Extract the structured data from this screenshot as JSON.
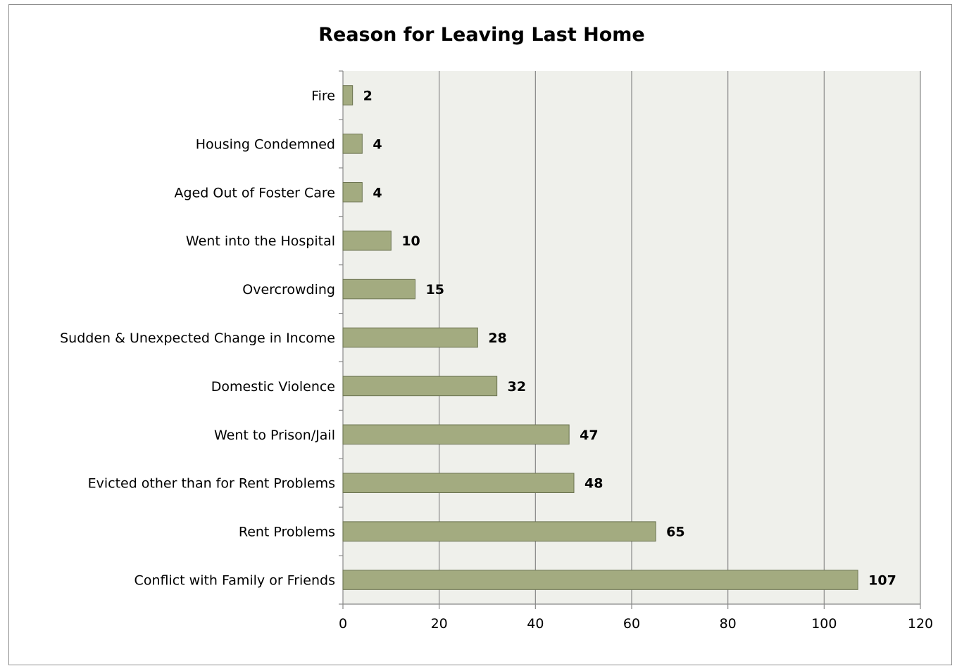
{
  "chart_data": {
    "type": "bar",
    "orientation": "horizontal",
    "title": "Reason for Leaving Last Home",
    "xlabel": "",
    "ylabel": "",
    "categories": [
      "Fire",
      "Housing Condemned",
      "Aged Out of Foster Care",
      "Went into the Hospital",
      "Overcrowding",
      "Sudden & Unexpected Change in Income",
      "Domestic Violence",
      "Went to Prison/Jail",
      "Evicted other than for Rent Problems",
      "Rent Problems",
      "Conflict with Family or Friends"
    ],
    "values": [
      2,
      4,
      4,
      10,
      15,
      28,
      32,
      47,
      48,
      65,
      107
    ],
    "xlim": [
      0,
      120
    ],
    "xticks": [
      "0",
      "20",
      "40",
      "60",
      "80",
      "100",
      "120"
    ],
    "grid": true,
    "data_labels": true,
    "legend": false
  },
  "colors": {
    "bar_fill": "#a3ab80",
    "bar_stroke": "#6b7350",
    "plot_background": "#eff0eb",
    "gridline": "#888888",
    "axis": "#888888"
  }
}
